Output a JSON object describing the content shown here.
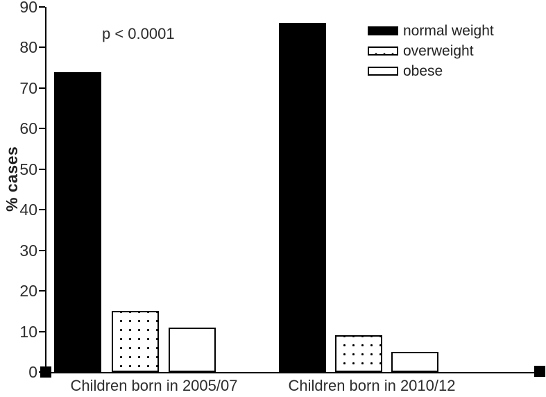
{
  "chart_data": {
    "type": "bar",
    "title": "",
    "xlabel": "",
    "ylabel": "% cases",
    "ylim": [
      0,
      90
    ],
    "yticks": [
      0,
      10,
      20,
      30,
      40,
      50,
      60,
      70,
      80,
      90
    ],
    "grid": false,
    "legend_position": "top-right",
    "annotation": "p < 0.0001",
    "categories": [
      "Children born in 2005/07",
      "Children born in 2010/12"
    ],
    "series": [
      {
        "name": "normal weight",
        "style": "solid-black",
        "values": [
          74,
          86
        ]
      },
      {
        "name": "overweight",
        "style": "dotted",
        "values": [
          15,
          9
        ]
      },
      {
        "name": "obese",
        "style": "white",
        "values": [
          11,
          5
        ]
      }
    ]
  },
  "colors": {
    "bar_fill": "#000000",
    "bar_border": "#000000",
    "axis": "#000000",
    "text": "#2d2d2d",
    "background": "#ffffff"
  }
}
